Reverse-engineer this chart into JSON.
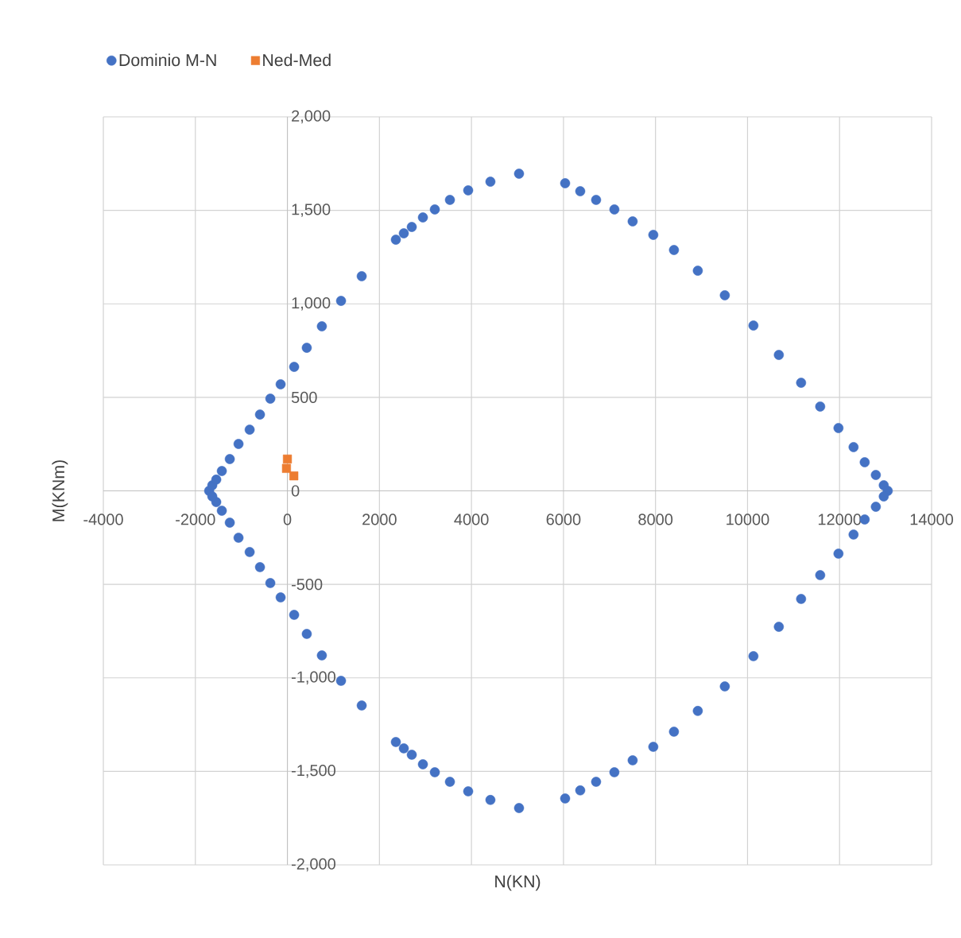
{
  "chart_data": {
    "type": "scatter",
    "xlabel": "N(KN)",
    "ylabel": "M(KNm)",
    "xlim": [
      -4000,
      14000
    ],
    "xticks": [
      -4000,
      -2000,
      0,
      2000,
      4000,
      6000,
      8000,
      10000,
      12000,
      14000
    ],
    "ylim": [
      -2000,
      2000
    ],
    "yticks": [
      {
        "value": -2000,
        "label": "-2,000"
      },
      {
        "value": -1500,
        "label": "-1,500"
      },
      {
        "value": -1000,
        "label": "-1,000"
      },
      {
        "value": -500,
        "label": "-500"
      },
      0,
      500,
      {
        "value": 1000,
        "label": "1,000"
      },
      {
        "value": 1500,
        "label": "1,500"
      },
      {
        "value": 2000,
        "label": "2,000"
      }
    ],
    "grid": true,
    "legend": "top left",
    "series": [
      {
        "name": "Dominio M-N",
        "color": "#4472c4",
        "marker": "circle",
        "x": [
          -1701,
          -1632,
          -1546,
          -1425,
          -1252,
          -1062,
          -820,
          -596,
          -371,
          -147,
          147,
          421,
          749,
          1166,
          1615,
          2357,
          2530,
          2703,
          2945,
          3204,
          3532,
          3929,
          4412,
          5034,
          6036,
          6364,
          6709,
          7106,
          7503,
          7952,
          8401,
          8919,
          9506,
          10128,
          10680,
          11164,
          11579,
          11976,
          12304,
          12546,
          12788,
          12960,
          13047,
          12960,
          12788,
          12546,
          12304,
          11976,
          11579,
          11164,
          10680,
          10128,
          9506,
          8919,
          8401,
          7952,
          7503,
          7106,
          6709,
          6364,
          6036,
          5034,
          4412,
          3929,
          3532,
          3204,
          2945,
          2703,
          2530,
          2357,
          1615,
          1166,
          749,
          421,
          147,
          -147,
          -371,
          -596,
          -820,
          -1062,
          -1252,
          -1425,
          -1546,
          -1632
        ],
        "values": [
          0,
          30,
          60,
          106,
          170,
          251,
          327,
          408,
          493,
          570,
          663,
          765,
          880,
          1016,
          1148,
          1343,
          1377,
          1411,
          1462,
          1505,
          1556,
          1607,
          1653,
          1696,
          1645,
          1602,
          1556,
          1505,
          1441,
          1369,
          1288,
          1177,
          1046,
          884,
          727,
          578,
          451,
          336,
          234,
          153,
          85,
          30,
          0,
          -30,
          -85,
          -153,
          -234,
          -336,
          -451,
          -578,
          -727,
          -884,
          -1046,
          -1177,
          -1288,
          -1369,
          -1441,
          -1505,
          -1556,
          -1602,
          -1645,
          -1696,
          -1653,
          -1607,
          -1556,
          -1505,
          -1462,
          -1411,
          -1377,
          -1343,
          -1148,
          -1016,
          -880,
          -765,
          -663,
          -570,
          -493,
          -408,
          -327,
          -251,
          -170,
          -106,
          -60,
          -30
        ]
      },
      {
        "name": "Ned-Med",
        "color": "#ed7d31",
        "marker": "square",
        "x": [
          0,
          -20,
          140
        ],
        "values": [
          170,
          120,
          80
        ]
      }
    ]
  }
}
